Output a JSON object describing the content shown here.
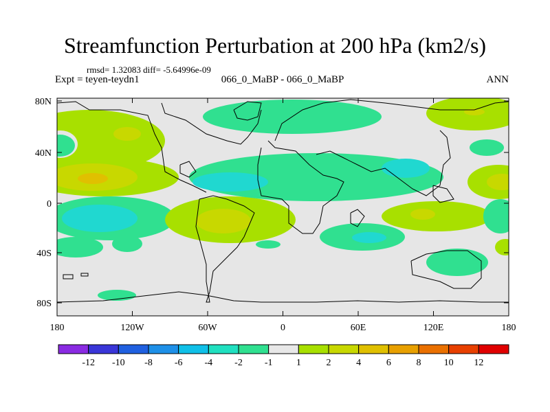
{
  "title": "Streamfunction Perturbation at 200 hPa (km2/s)",
  "stats": "rmsd= 1.32083 diff= -5.64996e-09",
  "expt": "Expt = teyen-teydn1",
  "cases": "066_0_MaBP - 066_0_MaBP",
  "season": "ANN",
  "lat_labels": [
    "80N",
    "40N",
    "0",
    "40S",
    "80S"
  ],
  "lon_labels": [
    "180",
    "120W",
    "60W",
    "0",
    "60E",
    "120E",
    "180"
  ],
  "colorbar": {
    "colors": [
      "#8a2be2",
      "#3a36d8",
      "#2060e0",
      "#1e90e8",
      "#10c0e8",
      "#20e0c0",
      "#30e090",
      "#e8e8e8",
      "#a8e000",
      "#c8d800",
      "#e0c000",
      "#e8a000",
      "#ea7000",
      "#e84000",
      "#e00000"
    ],
    "labels": [
      "-12",
      "-10",
      "-8",
      "-6",
      "-4",
      "-2",
      "-1",
      "1",
      "2",
      "4",
      "6",
      "8",
      "10",
      "12"
    ]
  }
}
